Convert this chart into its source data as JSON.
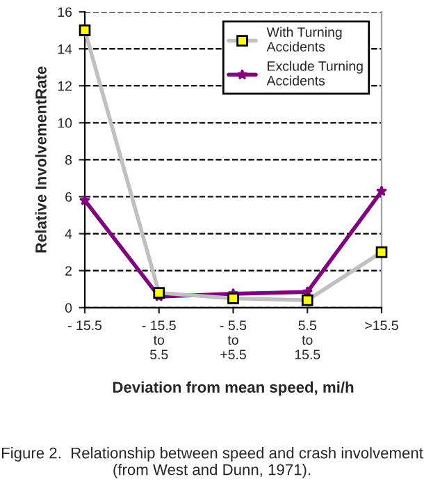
{
  "chart_data": {
    "type": "line",
    "categories": [
      "- 15.5",
      "- 15.5\nto\n5.5",
      "- 5.5\nto\n+5.5",
      "5.5\nto\n15.5",
      ">15.5"
    ],
    "series": [
      {
        "name": "With Turning\nAccidents",
        "color": "#c0c0c0",
        "marker": "square",
        "values": [
          15,
          0.8,
          0.5,
          0.4,
          3.0
        ]
      },
      {
        "name": "Exclude Turning\nAccidents",
        "color": "#800080",
        "marker": "star",
        "values": [
          5.8,
          0.6,
          0.75,
          0.85,
          6.3
        ]
      }
    ],
    "ylim": [
      0,
      16
    ],
    "yticks": [
      0,
      2,
      4,
      6,
      8,
      10,
      12,
      14,
      16
    ],
    "ylabel": "Relative InvolvementRate",
    "xlabel": "Deviation from mean speed, mi/h",
    "annotations": [
      "Figure 2.  Relationship between speed and crash involvement (from West and Dunn, 1971)."
    ],
    "grid": "y",
    "legend": "top right",
    "line_style": "solid"
  }
}
